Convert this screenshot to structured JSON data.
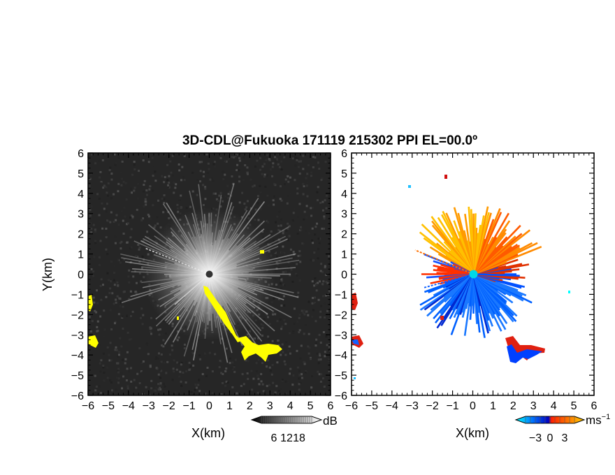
{
  "chart_data": {
    "title": "3D-CDL@Fukuoka 171119 215302 PPI EL=00.0º",
    "panels": [
      {
        "name": "reflectivity",
        "type": "heatmap",
        "xlabel": "X(km)",
        "ylabel": "Y(km)",
        "xlim": [
          -6,
          6
        ],
        "ylim": [
          -6,
          6
        ],
        "xticks": [
          "−6",
          "−5",
          "−4",
          "−3",
          "−2",
          "−1",
          "0",
          "1",
          "2",
          "3",
          "4",
          "5",
          "6"
        ],
        "yticks": [
          "6",
          "5",
          "4",
          "3",
          "2",
          "1",
          "0",
          "−1",
          "−2",
          "−3",
          "−4",
          "−5",
          "−6"
        ],
        "background_color": "#262626",
        "highlight_color": "#ffff00",
        "colorbar": {
          "unit": "dB",
          "ticks": [
            6,
            12,
            18
          ],
          "tick_labels": [
            "6",
            "12",
            "18"
          ],
          "range": [
            0,
            24
          ],
          "colors": [
            "#000000",
            "#ffffff"
          ]
        }
      },
      {
        "name": "doppler-velocity",
        "type": "heatmap",
        "xlabel": "X(km)",
        "xlim": [
          -6,
          6
        ],
        "ylim": [
          -6,
          6
        ],
        "xticks": [
          "−6",
          "−5",
          "−4",
          "−3",
          "−2",
          "−1",
          "0",
          "1",
          "2",
          "3",
          "4",
          "5",
          "6"
        ],
        "yticks": [
          "6",
          "5",
          "4",
          "3",
          "2",
          "1",
          "0",
          "−1",
          "−2",
          "−3",
          "−4",
          "−5",
          "−6"
        ],
        "colorbar": {
          "unit": "ms",
          "unit_exponent": "−1",
          "ticks": [
            -3,
            0,
            3
          ],
          "tick_labels": [
            "−3",
            "0",
            "3"
          ],
          "range": [
            -5,
            5
          ],
          "colors": [
            "#00ffff",
            "#0070ff",
            "#0000c0",
            "#ff2000",
            "#ff7000",
            "#ffd000"
          ]
        }
      }
    ]
  }
}
